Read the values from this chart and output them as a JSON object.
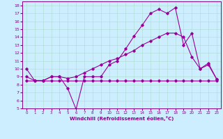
{
  "xlabel": "Windchill (Refroidissement éolien,°C)",
  "bg_color": "#cceeff",
  "line_color": "#990099",
  "xlim": [
    -0.5,
    23.5
  ],
  "ylim": [
    5,
    18.5
  ],
  "xticks": [
    0,
    1,
    2,
    3,
    4,
    5,
    6,
    7,
    8,
    9,
    10,
    11,
    12,
    13,
    14,
    15,
    16,
    17,
    18,
    19,
    20,
    21,
    22,
    23
  ],
  "yticks": [
    5,
    6,
    7,
    8,
    9,
    10,
    11,
    12,
    13,
    14,
    15,
    16,
    17,
    18
  ],
  "line1_x": [
    0,
    1,
    2,
    3,
    4,
    5,
    6,
    7,
    8,
    9,
    10,
    11,
    12,
    13,
    14,
    15,
    16,
    17,
    18,
    19,
    20,
    21,
    22,
    23
  ],
  "line1_y": [
    10.0,
    8.5,
    8.5,
    9.0,
    9.0,
    7.5,
    4.9,
    9.0,
    9.0,
    9.0,
    10.5,
    11.0,
    12.5,
    14.1,
    15.5,
    17.0,
    17.5,
    17.0,
    17.7,
    13.0,
    14.5,
    10.0,
    10.7,
    8.7
  ],
  "line2_x": [
    0,
    1,
    2,
    3,
    4,
    5,
    6,
    7,
    8,
    9,
    10,
    11,
    12,
    13,
    14,
    15,
    16,
    17,
    18,
    19,
    20,
    21,
    22,
    23
  ],
  "line2_y": [
    9.0,
    8.5,
    8.5,
    9.0,
    9.0,
    8.8,
    9.0,
    9.5,
    10.0,
    10.5,
    11.0,
    11.3,
    11.8,
    12.3,
    13.0,
    13.5,
    14.0,
    14.5,
    14.5,
    14.0,
    11.5,
    10.0,
    10.5,
    8.7
  ],
  "line3_x": [
    0,
    1,
    2,
    3,
    4,
    5,
    6,
    7,
    8,
    9,
    10,
    11,
    12,
    13,
    14,
    15,
    16,
    17,
    18,
    19,
    20,
    21,
    22,
    23
  ],
  "line3_y": [
    8.5,
    8.5,
    8.5,
    8.5,
    8.5,
    8.5,
    8.5,
    8.5,
    8.5,
    8.5,
    8.5,
    8.5,
    8.5,
    8.5,
    8.5,
    8.5,
    8.5,
    8.5,
    8.5,
    8.5,
    8.5,
    8.5,
    8.5,
    8.5
  ]
}
